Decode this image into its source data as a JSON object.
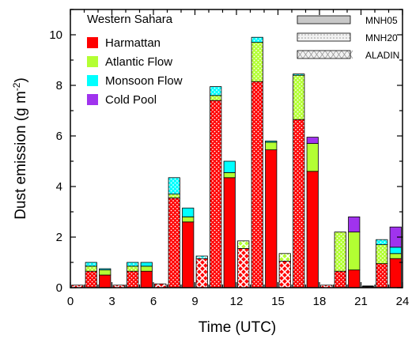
{
  "chart_data": {
    "type": "bar",
    "subtype": "stacked-grouped",
    "xlabel": "Time (UTC)",
    "ylabel_main": "Dust emission (g m",
    "ylabel_sup": "-2",
    "ylabel_close": ")",
    "xlim": [
      0,
      24
    ],
    "ylim": [
      0,
      11
    ],
    "x_ticks": [
      0,
      3,
      6,
      9,
      12,
      15,
      18,
      21,
      24
    ],
    "y_ticks": [
      0,
      2,
      4,
      6,
      8,
      10
    ],
    "grid": false,
    "region_title": "Western Sahara",
    "legend_position": "top-left",
    "model_legend_position": "top-right",
    "categories": [
      {
        "name": "Harmattan",
        "color": "#ff0000"
      },
      {
        "name": "Atlantic Flow",
        "color": "#b3ff33"
      },
      {
        "name": "Monsoon Flow",
        "color": "#00ffff"
      },
      {
        "name": "Cold Pool",
        "color": "#a033ee"
      }
    ],
    "models": [
      {
        "name": "MNH05",
        "pattern": "solid"
      },
      {
        "name": "MNH20",
        "pattern": "dots"
      },
      {
        "name": "ALADIN",
        "pattern": "crosshatch"
      }
    ],
    "times": [
      1,
      4,
      7,
      10,
      13,
      16,
      19,
      22
    ],
    "bars": [
      {
        "model": "ALADIN",
        "time": 0.5,
        "values": [
          0.1,
          0,
          0,
          0
        ]
      },
      {
        "model": "MNH20",
        "time": 1.5,
        "values": [
          0.65,
          0.2,
          0.15,
          0
        ]
      },
      {
        "model": "MNH05",
        "time": 2.5,
        "values": [
          0.5,
          0.2,
          0.05,
          0
        ]
      },
      {
        "model": "ALADIN",
        "time": 3.5,
        "values": [
          0.1,
          0,
          0,
          0
        ]
      },
      {
        "model": "MNH20",
        "time": 4.5,
        "values": [
          0.65,
          0.2,
          0.15,
          0
        ]
      },
      {
        "model": "MNH05",
        "time": 5.5,
        "values": [
          0.65,
          0.2,
          0.15,
          0
        ]
      },
      {
        "model": "ALADIN",
        "time": 6.5,
        "values": [
          0.15,
          0,
          0,
          0
        ]
      },
      {
        "model": "MNH20",
        "time": 7.5,
        "values": [
          3.55,
          0.15,
          0.65,
          0
        ]
      },
      {
        "model": "MNH05",
        "time": 8.5,
        "values": [
          2.6,
          0.2,
          0.35,
          0
        ]
      },
      {
        "model": "ALADIN",
        "time": 9.5,
        "values": [
          1.15,
          0,
          0.1,
          0
        ]
      },
      {
        "model": "MNH20",
        "time": 10.5,
        "values": [
          7.4,
          0.2,
          0.35,
          0
        ]
      },
      {
        "model": "MNH05",
        "time": 11.5,
        "values": [
          4.35,
          0.2,
          0.45,
          0
        ]
      },
      {
        "model": "ALADIN",
        "time": 12.5,
        "values": [
          1.55,
          0.3,
          0,
          0
        ]
      },
      {
        "model": "MNH20",
        "time": 13.5,
        "values": [
          8.15,
          1.55,
          0.2,
          0
        ]
      },
      {
        "model": "MNH05",
        "time": 14.5,
        "values": [
          5.45,
          0.3,
          0.05,
          0
        ]
      },
      {
        "model": "ALADIN",
        "time": 15.5,
        "values": [
          1.05,
          0.3,
          0,
          0
        ]
      },
      {
        "model": "MNH20",
        "time": 16.5,
        "values": [
          6.65,
          1.75,
          0.05,
          0
        ]
      },
      {
        "model": "MNH05",
        "time": 17.5,
        "values": [
          4.6,
          1.1,
          0,
          0.25
        ]
      },
      {
        "model": "ALADIN",
        "time": 18.5,
        "values": [
          0.1,
          0,
          0,
          0
        ]
      },
      {
        "model": "MNH20",
        "time": 19.5,
        "values": [
          0.65,
          1.55,
          0,
          0
        ]
      },
      {
        "model": "MNH05",
        "time": 20.5,
        "values": [
          0.7,
          1.5,
          0,
          0.6
        ]
      },
      {
        "model": "ALADIN",
        "time": 21.5,
        "values": [
          0.05,
          0,
          0,
          0
        ]
      },
      {
        "model": "MNH20",
        "time": 22.5,
        "values": [
          0.95,
          0.75,
          0.2,
          0
        ]
      },
      {
        "model": "MNH05",
        "time": 23.5,
        "values": [
          1.15,
          0.2,
          0.25,
          0.8
        ]
      }
    ]
  }
}
